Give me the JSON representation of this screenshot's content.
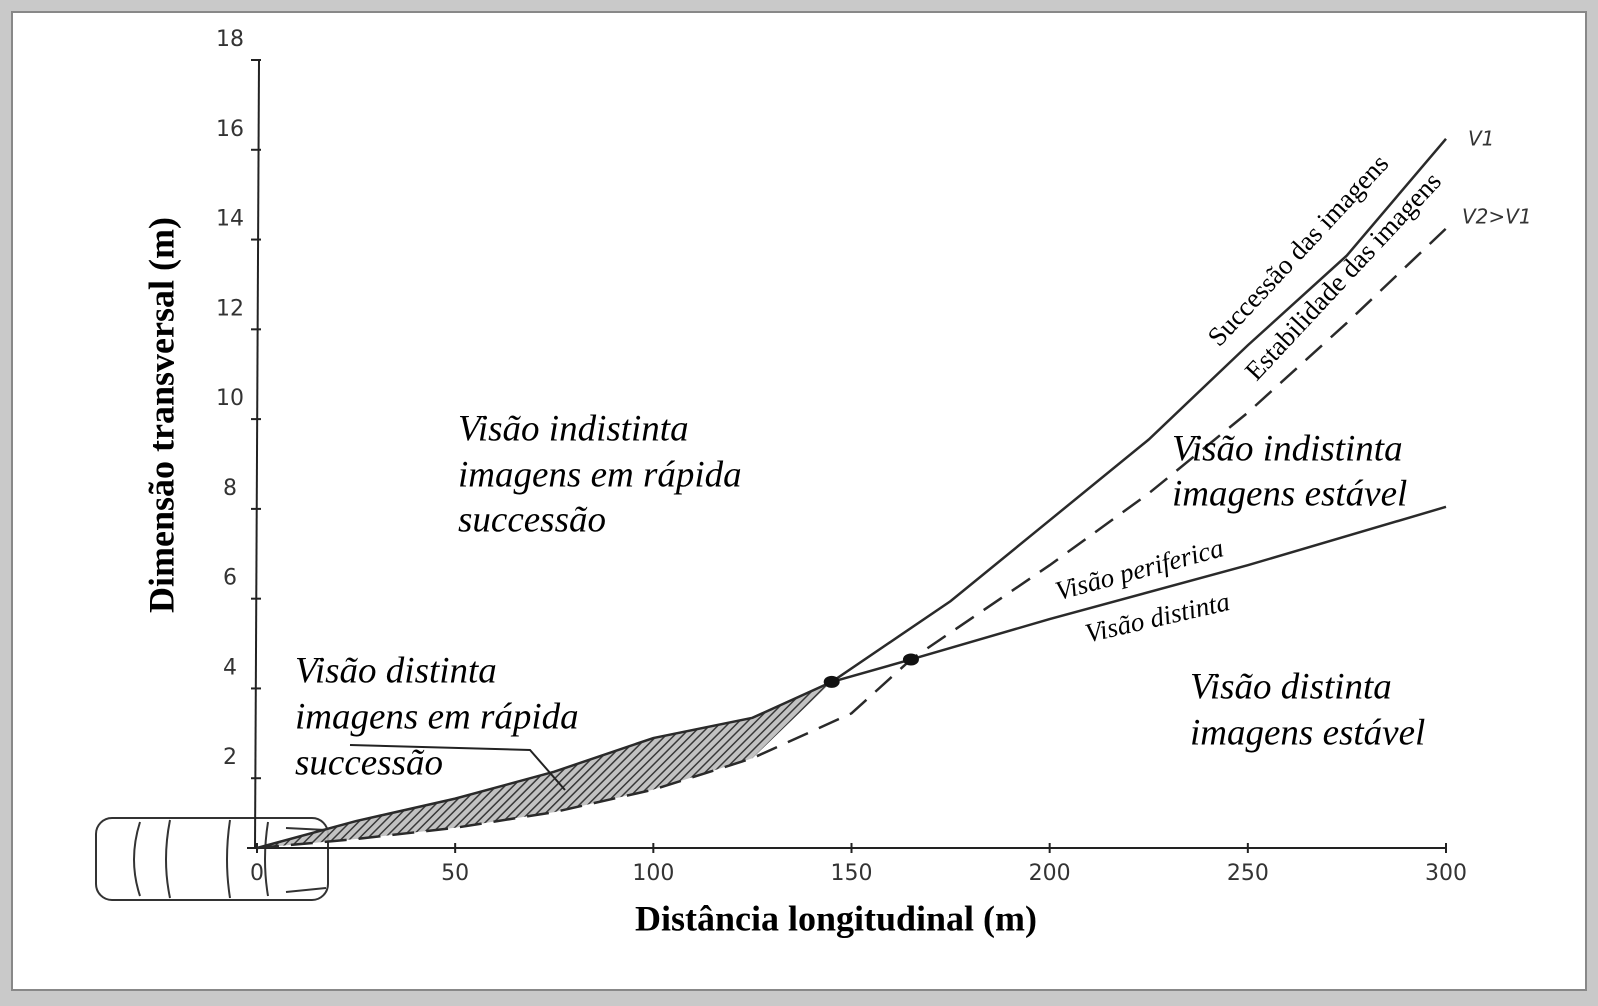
{
  "chart_data": {
    "type": "line",
    "x_label": "Distância longitudinal (m)",
    "y_label": "Dimensão transversal (m)",
    "xlim": [
      0,
      300
    ],
    "xticks": [
      0,
      50,
      100,
      150,
      200,
      250,
      300
    ],
    "ylim": [
      0,
      18
    ],
    "yticks": [
      2,
      4,
      6,
      8,
      10,
      12,
      14,
      16,
      18
    ],
    "series": [
      {
        "name": "V1",
        "color": "#2a2a2a",
        "dashed": false,
        "x": [
          0,
          25,
          50,
          75,
          100,
          125,
          145,
          175,
          200,
          225,
          250,
          275,
          300
        ],
        "values": [
          0,
          0.6,
          1.1,
          1.7,
          2.45,
          2.9,
          3.7,
          5.5,
          7.3,
          9.1,
          11.2,
          13.2,
          15.8
        ]
      },
      {
        "name": "V2>V1",
        "color": "#2a2a2a",
        "dashed": true,
        "x": [
          0,
          25,
          50,
          75,
          100,
          125,
          150,
          165,
          200,
          225,
          250,
          275,
          300
        ],
        "values": [
          0,
          0.2,
          0.45,
          0.8,
          1.3,
          2.0,
          3.0,
          4.2,
          6.3,
          7.9,
          9.7,
          11.7,
          13.8
        ]
      },
      {
        "color": "#2a2a2a",
        "dashed": false,
        "x": [
          145,
          165,
          200,
          250,
          300
        ],
        "values": [
          3.7,
          4.2,
          5.1,
          6.3,
          7.6
        ]
      }
    ],
    "annotations": [
      "Visão indistinta",
      "imagens em rápida",
      "successão",
      "Visão indistinta",
      "imagens estável",
      "Visão distinta",
      "imagens em rápida",
      "successão",
      "Visão distinta",
      "imagens estável",
      "Successão das imagens",
      "Estabilidade das imagens",
      "Visão periferica",
      "Visão distinta"
    ]
  }
}
